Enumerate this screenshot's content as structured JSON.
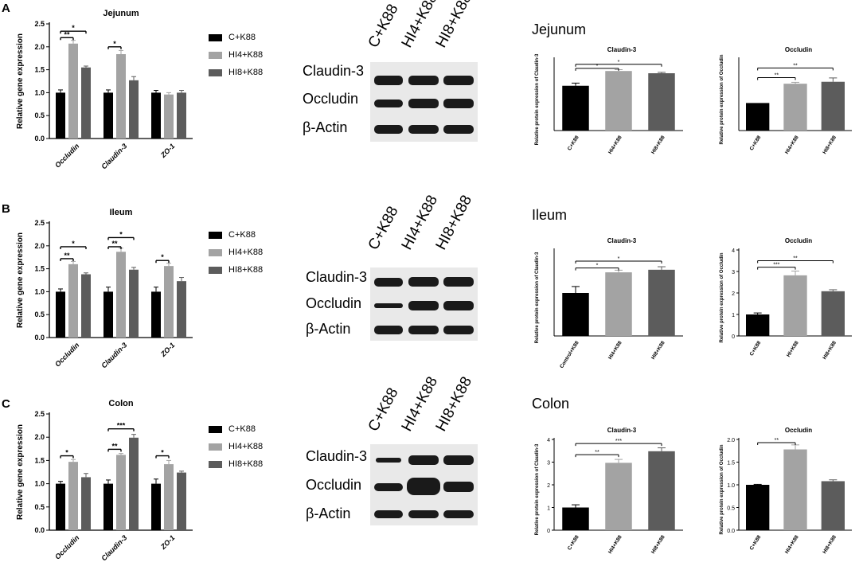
{
  "colors": {
    "C+K88": "#000000",
    "HI4+K88": "#a3a3a3",
    "HI8+K88": "#5c5c5c"
  },
  "legend": [
    "C+K88",
    "HI4+K88",
    "HI8+K88"
  ],
  "blot_lanes": [
    "C+K88",
    "HI4+K88",
    "HI8+K88"
  ],
  "blot_proteins": [
    "Claudin-3",
    "Occludin",
    "β-Actin"
  ],
  "rows": [
    {
      "letter": "A",
      "tissue_title": "Jejunum",
      "gene_chart_title": "Jejunum"
    },
    {
      "letter": "B",
      "tissue_title": "Ileum",
      "gene_chart_title": "Ileum"
    },
    {
      "letter": "C",
      "tissue_title": "Colon",
      "gene_chart_title": "Colon"
    }
  ],
  "chart_data": [
    {
      "id": "A-gene",
      "type": "bar",
      "title": "Jejunum",
      "ylabel": "Relative gene expression",
      "ylim": [
        0,
        2.5
      ],
      "yticks": [
        0.0,
        0.5,
        1.0,
        1.5,
        2.0,
        2.5
      ],
      "categories": [
        "Occludin",
        "Claudin-3",
        "ZO-1"
      ],
      "series": [
        {
          "name": "C+K88",
          "values": [
            1.0,
            1.0,
            1.0
          ],
          "errors": [
            0.06,
            0.06,
            0.05
          ]
        },
        {
          "name": "HI4+K88",
          "values": [
            2.07,
            1.84,
            0.96
          ],
          "errors": [
            0.07,
            0.08,
            0.04
          ]
        },
        {
          "name": "HI8+K88",
          "values": [
            1.55,
            1.27,
            1.0
          ],
          "errors": [
            0.03,
            0.08,
            0.05
          ]
        }
      ],
      "brackets": [
        {
          "cat": 0,
          "from": 0,
          "to": 2,
          "label": "*",
          "y": 2.34
        },
        {
          "cat": 0,
          "from": 0,
          "to": 1,
          "label": "**",
          "y": 2.2
        },
        {
          "cat": 1,
          "from": 0,
          "to": 1,
          "label": "*",
          "y": 2.0
        }
      ]
    },
    {
      "id": "A-claudin",
      "type": "bar",
      "title": "Claudin-3",
      "ylabel": "Relative protein expression of Claudin-3",
      "categories": [
        "C+K88",
        "HI4+K88",
        "HI8+K88"
      ],
      "values": [
        1.0,
        1.33,
        1.28
      ],
      "errors": [
        0.06,
        0.03,
        0.02
      ],
      "ylim": [
        0,
        1.6
      ],
      "yticks": [],
      "brackets": [
        {
          "from": 0,
          "to": 2,
          "label": "*",
          "y": 1.48
        },
        {
          "from": 0,
          "to": 1,
          "label": "*",
          "y": 1.39
        }
      ]
    },
    {
      "id": "A-occludin",
      "type": "bar",
      "title": "Occludin",
      "ylabel": "Relative protein expression of Occludin",
      "categories": [
        "C+K88",
        "HI4+K88",
        "HI8+K88"
      ],
      "values": [
        1.0,
        1.7,
        1.77
      ],
      "errors": [
        0.0,
        0.05,
        0.14
      ],
      "ylim": [
        0,
        2.6
      ],
      "yticks": [],
      "brackets": [
        {
          "from": 0,
          "to": 2,
          "label": "**",
          "y": 2.27
        },
        {
          "from": 0,
          "to": 1,
          "label": "**",
          "y": 1.92
        }
      ]
    },
    {
      "id": "B-gene",
      "type": "bar",
      "title": "Ileum",
      "ylabel": "Relative gene expression",
      "ylim": [
        0,
        2.5
      ],
      "yticks": [
        0.0,
        0.5,
        1.0,
        1.5,
        2.0,
        2.5
      ],
      "categories": [
        "Occludin",
        "Claudin-3",
        "ZO-1"
      ],
      "series": [
        {
          "name": "C+K88",
          "values": [
            1.0,
            1.0,
            1.0
          ],
          "errors": [
            0.06,
            0.1,
            0.1
          ]
        },
        {
          "name": "HI4+K88",
          "values": [
            1.6,
            1.87,
            1.56
          ],
          "errors": [
            0.06,
            0.08,
            0.06
          ]
        },
        {
          "name": "HI8+K88",
          "values": [
            1.38,
            1.48,
            1.23
          ],
          "errors": [
            0.03,
            0.05,
            0.08
          ]
        }
      ],
      "brackets": [
        {
          "cat": 0,
          "from": 0,
          "to": 2,
          "label": "*",
          "y": 1.98
        },
        {
          "cat": 0,
          "from": 0,
          "to": 1,
          "label": "**",
          "y": 1.72
        },
        {
          "cat": 1,
          "from": 0,
          "to": 2,
          "label": "*",
          "y": 2.18
        },
        {
          "cat": 1,
          "from": 0,
          "to": 1,
          "label": "**",
          "y": 1.98
        },
        {
          "cat": 2,
          "from": 0,
          "to": 1,
          "label": "*",
          "y": 1.68
        }
      ]
    },
    {
      "id": "B-claudin",
      "type": "bar",
      "title": "Claudin-3",
      "ylabel": "Relative protein expression of Claudin-3",
      "categories": [
        "Control+K88",
        "HI4+K88",
        "HI8+K88"
      ],
      "values": [
        1.0,
        1.48,
        1.54
      ],
      "errors": [
        0.15,
        0.05,
        0.07
      ],
      "ylim": [
        0,
        2.0
      ],
      "yticks": [],
      "brackets": [
        {
          "from": 0,
          "to": 2,
          "label": "*",
          "y": 1.74
        },
        {
          "from": 0,
          "to": 1,
          "label": "*",
          "y": 1.58
        }
      ]
    },
    {
      "id": "B-occludin",
      "type": "bar",
      "title": "Occludin",
      "ylabel": "Relative protein expression of Occludin",
      "categories": [
        "C+K88",
        "HI+K88",
        "HI8+K88"
      ],
      "values": [
        1.0,
        2.82,
        2.08
      ],
      "errors": [
        0.07,
        0.2,
        0.07
      ],
      "ylim": [
        0,
        4
      ],
      "yticks": [
        0,
        1,
        2,
        3,
        4
      ],
      "brackets": [
        {
          "from": 0,
          "to": 2,
          "label": "**",
          "y": 3.5
        },
        {
          "from": 0,
          "to": 1,
          "label": "***",
          "y": 3.2
        }
      ]
    },
    {
      "id": "C-gene",
      "type": "bar",
      "title": "Colon",
      "ylabel": "Relative gene expression",
      "ylim": [
        0,
        2.5
      ],
      "yticks": [
        0.0,
        0.5,
        1.0,
        1.5,
        2.0,
        2.5
      ],
      "categories": [
        "Occludin",
        "Claudin-3",
        "ZO-1"
      ],
      "series": [
        {
          "name": "C+K88",
          "values": [
            1.0,
            1.0,
            1.0
          ],
          "errors": [
            0.05,
            0.08,
            0.1
          ]
        },
        {
          "name": "HI4+K88",
          "values": [
            1.47,
            1.62,
            1.42
          ],
          "errors": [
            0.05,
            0.03,
            0.08
          ]
        },
        {
          "name": "HI8+K88",
          "values": [
            1.14,
            1.99,
            1.24
          ],
          "errors": [
            0.08,
            0.07,
            0.03
          ]
        }
      ],
      "brackets": [
        {
          "cat": 0,
          "from": 0,
          "to": 1,
          "label": "*",
          "y": 1.6
        },
        {
          "cat": 1,
          "from": 0,
          "to": 2,
          "label": "***",
          "y": 2.18
        },
        {
          "cat": 1,
          "from": 0,
          "to": 1,
          "label": "**",
          "y": 1.74
        },
        {
          "cat": 2,
          "from": 0,
          "to": 1,
          "label": "*",
          "y": 1.6
        }
      ]
    },
    {
      "id": "C-claudin",
      "type": "bar",
      "title": "Claudin-3",
      "ylabel": "Relative protein expression of Claudin-3",
      "categories": [
        "C+K88",
        "HI4+K88",
        "HI8+K88"
      ],
      "values": [
        1.0,
        2.97,
        3.48
      ],
      "errors": [
        0.12,
        0.15,
        0.15
      ],
      "ylim": [
        0,
        4
      ],
      "yticks": [
        0,
        1,
        2,
        3,
        4
      ],
      "brackets": [
        {
          "from": 0,
          "to": 2,
          "label": "***",
          "y": 3.82
        },
        {
          "from": 0,
          "to": 1,
          "label": "**",
          "y": 3.33
        }
      ]
    },
    {
      "id": "C-occludin",
      "type": "bar",
      "title": "Occludin",
      "ylabel": "Relative protein expression of Occludin",
      "categories": [
        "C+K88",
        "HI4+K88",
        "HI8+K88"
      ],
      "values": [
        1.0,
        1.78,
        1.08
      ],
      "errors": [
        0.01,
        0.1,
        0.03
      ],
      "ylim": [
        0,
        2.0
      ],
      "yticks": [
        0.0,
        0.5,
        1.0,
        1.5,
        2.0
      ],
      "brackets": [
        {
          "from": 0,
          "to": 1,
          "label": "**",
          "y": 1.93
        }
      ]
    }
  ]
}
